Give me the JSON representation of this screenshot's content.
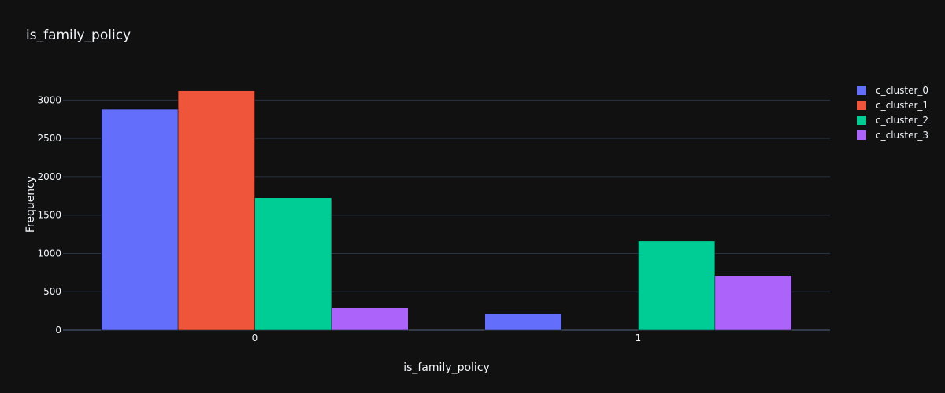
{
  "chart_data": {
    "type": "bar",
    "title": "is_family_policy",
    "xlabel": "is_family_policy",
    "ylabel": "Frequency",
    "categories": [
      "0",
      "1"
    ],
    "ylim": [
      0,
      3250
    ],
    "yticks": [
      0,
      500,
      1000,
      1500,
      2000,
      2500,
      3000
    ],
    "grid": true,
    "legend_position": "top-right",
    "series": [
      {
        "name": "c_cluster_0",
        "color": "#636efa",
        "values": [
          2880,
          210
        ]
      },
      {
        "name": "c_cluster_1",
        "color": "#ef553b",
        "values": [
          3120,
          0
        ]
      },
      {
        "name": "c_cluster_2",
        "color": "#00cc96",
        "values": [
          1725,
          1160
        ]
      },
      {
        "name": "c_cluster_3",
        "color": "#ab63fa",
        "values": [
          290,
          710
        ]
      }
    ]
  }
}
